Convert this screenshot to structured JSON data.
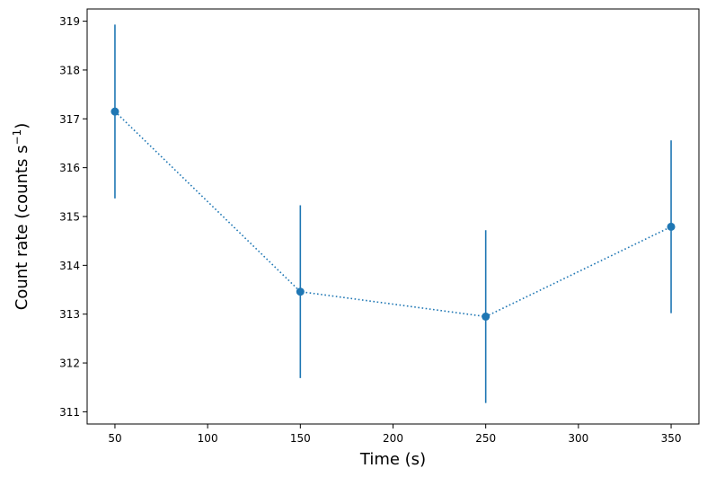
{
  "chart_data": {
    "type": "scatter",
    "xlabel": "Time (s)",
    "ylabel_main": "Count rate (counts s",
    "ylabel_sup": "−1",
    "ylabel_close": ")",
    "xlim": [
      35,
      365
    ],
    "ylim": [
      310.75,
      319.25
    ],
    "xticks": [
      50,
      100,
      150,
      200,
      250,
      300,
      350
    ],
    "yticks": [
      311,
      312,
      313,
      314,
      315,
      316,
      317,
      318,
      319
    ],
    "grid": false,
    "series": [
      {
        "x": [
          50,
          150,
          250,
          350
        ],
        "y": [
          317.15,
          313.46,
          312.95,
          314.79
        ],
        "yerr": [
          1.78,
          1.77,
          1.77,
          1.77
        ],
        "marker": "circle",
        "linestyle": "dotted",
        "color": "#1f77b4"
      }
    ]
  }
}
